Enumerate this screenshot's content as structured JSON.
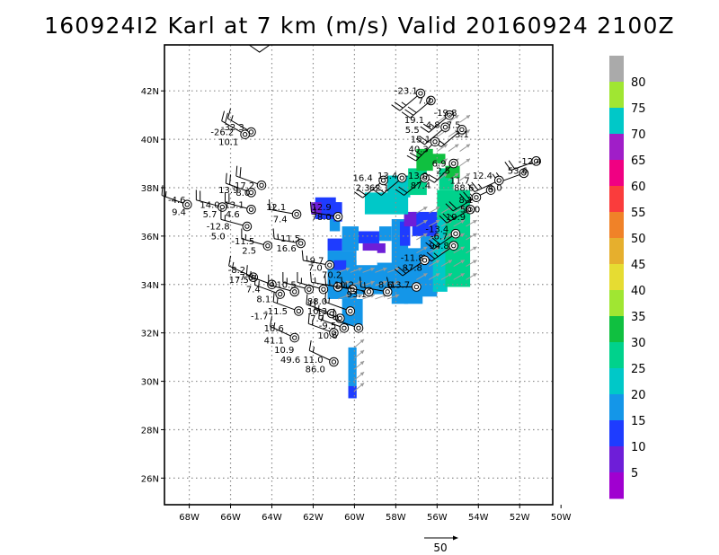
{
  "title": "160924I2 Karl at 7 km (m/s) Valid 20160924  2100Z",
  "chart_data": {
    "type": "heatmap",
    "title": "160924I2 Karl at 7 km (m/s) Valid 20160924  2100Z",
    "xlabel": "",
    "ylabel": "",
    "x_ticks": [
      "68W",
      "66W",
      "64W",
      "62W",
      "60W",
      "58W",
      "56W",
      "54W",
      "52W",
      "50W"
    ],
    "y_ticks": [
      "26N",
      "28N",
      "30N",
      "32N",
      "34N",
      "36N",
      "38N",
      "40N",
      "42N"
    ],
    "xlim": [
      -69.2,
      -50.4
    ],
    "ylim": [
      24.9,
      43.9
    ],
    "grid": true,
    "colorbar": {
      "labels": [
        "5",
        "10",
        "15",
        "20",
        "25",
        "30",
        "35",
        "40",
        "45",
        "50",
        "55",
        "60",
        "65",
        "70",
        "75",
        "80"
      ],
      "colors": [
        "#a000d0",
        "#6e1ed8",
        "#1e3cff",
        "#1496e8",
        "#00c8c8",
        "#00d28c",
        "#10c040",
        "#a0e632",
        "#e6dc32",
        "#e6af2d",
        "#f08228",
        "#fa3c3c",
        "#f00082",
        "#a01ec8",
        "#00c8c8",
        "#a0e632",
        "#aaaaaa"
      ]
    },
    "reference_vector": {
      "label": "50"
    },
    "point_labels": [
      {
        "text": "-23.1",
        "lon": -57.5,
        "lat": 42.0
      },
      {
        "text": "7.2",
        "lon": -56.6,
        "lat": 41.6
      },
      {
        "text": "-19.8",
        "lon": -55.6,
        "lat": 41.1
      },
      {
        "text": "19.1",
        "lon": -57.1,
        "lat": 40.8
      },
      {
        "text": "4.8",
        "lon": -56.2,
        "lat": 40.6
      },
      {
        "text": "7.5",
        "lon": -55.2,
        "lat": 40.6
      },
      {
        "text": "5.5",
        "lon": -57.2,
        "lat": 40.4
      },
      {
        "text": "15.1",
        "lon": -56.8,
        "lat": 40.0
      },
      {
        "text": "3.1",
        "lon": -54.8,
        "lat": 40.2
      },
      {
        "text": "40.3",
        "lon": -56.9,
        "lat": 39.6
      },
      {
        "text": "6.9",
        "lon": -55.9,
        "lat": 39.0
      },
      {
        "text": "-13.0",
        "lon": -57.0,
        "lat": 38.5
      },
      {
        "text": "2.5",
        "lon": -55.7,
        "lat": 38.7
      },
      {
        "text": "87.4",
        "lon": -56.8,
        "lat": 38.1
      },
      {
        "text": "16.4",
        "lon": -59.6,
        "lat": 38.4
      },
      {
        "text": "13.4",
        "lon": -58.4,
        "lat": 38.5
      },
      {
        "text": "2.3",
        "lon": -59.6,
        "lat": 38.0
      },
      {
        "text": "62.1",
        "lon": -58.8,
        "lat": 38.0
      },
      {
        "text": "-12.4",
        "lon": -51.5,
        "lat": 39.1
      },
      {
        "text": "53.6",
        "lon": -52.1,
        "lat": 38.7
      },
      {
        "text": "11.7",
        "lon": -54.9,
        "lat": 38.3
      },
      {
        "text": "12.4",
        "lon": -53.8,
        "lat": 38.5
      },
      {
        "text": "88.6",
        "lon": -54.7,
        "lat": 38.0
      },
      {
        "text": "4.0",
        "lon": -53.2,
        "lat": 38.0
      },
      {
        "text": "8.1",
        "lon": -54.6,
        "lat": 37.5
      },
      {
        "text": "50.0",
        "lon": -54.4,
        "lat": 37.1
      },
      {
        "text": "19.9",
        "lon": -55.1,
        "lat": 36.8
      },
      {
        "text": "-13.4",
        "lon": -56.0,
        "lat": 36.3
      },
      {
        "text": "-6.7",
        "lon": -55.9,
        "lat": 36.0
      },
      {
        "text": "94.8",
        "lon": -55.9,
        "lat": 35.6
      },
      {
        "text": "-11.8",
        "lon": -57.2,
        "lat": 35.1
      },
      {
        "text": "87.8",
        "lon": -57.2,
        "lat": 34.7
      },
      {
        "text": "-32.3",
        "lon": -65.9,
        "lat": 40.5
      },
      {
        "text": "-26.2",
        "lon": -66.4,
        "lat": 40.3
      },
      {
        "text": "10.1",
        "lon": -66.1,
        "lat": 39.9
      },
      {
        "text": "-17.2",
        "lon": -65.4,
        "lat": 38.1
      },
      {
        "text": "13.9",
        "lon": -66.1,
        "lat": 37.9
      },
      {
        "text": "8.0",
        "lon": -65.4,
        "lat": 37.8
      },
      {
        "text": "14.0",
        "lon": -67.0,
        "lat": 37.3
      },
      {
        "text": "-13.1",
        "lon": -65.9,
        "lat": 37.3
      },
      {
        "text": "5.7",
        "lon": -67.0,
        "lat": 36.9
      },
      {
        "text": "4.6",
        "lon": -65.9,
        "lat": 36.9
      },
      {
        "text": "-4.6",
        "lon": -68.6,
        "lat": 37.5
      },
      {
        "text": "9.4",
        "lon": -68.5,
        "lat": 37.0
      },
      {
        "text": "12.1",
        "lon": -63.8,
        "lat": 37.2
      },
      {
        "text": "7.4",
        "lon": -63.6,
        "lat": 36.7
      },
      {
        "text": "12.9",
        "lon": -61.6,
        "lat": 37.2
      },
      {
        "text": "78.0",
        "lon": -61.6,
        "lat": 36.8
      },
      {
        "text": "-12.8",
        "lon": -66.6,
        "lat": 36.4
      },
      {
        "text": "5.0",
        "lon": -66.6,
        "lat": 36.0
      },
      {
        "text": "-11.5",
        "lon": -65.4,
        "lat": 35.8
      },
      {
        "text": "2.5",
        "lon": -65.1,
        "lat": 35.4
      },
      {
        "text": "11.5",
        "lon": -63.1,
        "lat": 35.9
      },
      {
        "text": "16.6",
        "lon": -63.3,
        "lat": 35.5
      },
      {
        "text": "-9.7",
        "lon": -61.9,
        "lat": 35.0
      },
      {
        "text": "7.0",
        "lon": -61.9,
        "lat": 34.7
      },
      {
        "text": "-8.2",
        "lon": -65.7,
        "lat": 34.6
      },
      {
        "text": "17.5",
        "lon": -65.6,
        "lat": 34.2
      },
      {
        "text": "-7.0",
        "lon": -65.3,
        "lat": 34.3
      },
      {
        "text": "70.2",
        "lon": -61.1,
        "lat": 34.4
      },
      {
        "text": "7.4",
        "lon": -64.9,
        "lat": 33.8
      },
      {
        "text": "10.5",
        "lon": -63.3,
        "lat": 34.0
      },
      {
        "text": "8.1",
        "lon": -64.4,
        "lat": 33.4
      },
      {
        "text": "-11.5",
        "lon": -63.8,
        "lat": 32.9
      },
      {
        "text": "10.2",
        "lon": -60.5,
        "lat": 34.0
      },
      {
        "text": "8.6",
        "lon": -58.5,
        "lat": 34.0
      },
      {
        "text": "13.7",
        "lon": -57.8,
        "lat": 34.0
      },
      {
        "text": "93.1",
        "lon": -59.9,
        "lat": 33.6
      },
      {
        "text": "88.0",
        "lon": -61.8,
        "lat": 33.3
      },
      {
        "text": "10.3",
        "lon": -61.8,
        "lat": 32.9
      },
      {
        "text": "7.7",
        "lon": -61.8,
        "lat": 32.6
      },
      {
        "text": "-9.5",
        "lon": -61.3,
        "lat": 32.3
      },
      {
        "text": "-1.7",
        "lon": -64.6,
        "lat": 32.7
      },
      {
        "text": "10.6",
        "lon": -63.9,
        "lat": 32.2
      },
      {
        "text": "10.6",
        "lon": -61.3,
        "lat": 31.9
      },
      {
        "text": "41.1",
        "lon": -63.9,
        "lat": 31.7
      },
      {
        "text": "10.9",
        "lon": -63.4,
        "lat": 31.3
      },
      {
        "text": "49.6",
        "lon": -63.1,
        "lat": 30.9
      },
      {
        "text": "11.0",
        "lon": -62.0,
        "lat": 30.9
      },
      {
        "text": "86.0",
        "lon": -61.9,
        "lat": 30.5
      }
    ],
    "barbs": [
      {
        "lon": -56.8,
        "lat": 41.9,
        "speed": 25,
        "dir": 230
      },
      {
        "lon": -56.3,
        "lat": 41.6,
        "speed": 30,
        "dir": 230
      },
      {
        "lon": -55.4,
        "lat": 41.0,
        "speed": 25,
        "dir": 230
      },
      {
        "lon": -55.6,
        "lat": 40.5,
        "speed": 20,
        "dir": 230
      },
      {
        "lon": -54.8,
        "lat": 40.4,
        "speed": 20,
        "dir": 230
      },
      {
        "lon": -56.1,
        "lat": 39.9,
        "speed": 25,
        "dir": 225
      },
      {
        "lon": -55.2,
        "lat": 39.0,
        "speed": 20,
        "dir": 225
      },
      {
        "lon": -51.2,
        "lat": 39.1,
        "speed": 20,
        "dir": 250
      },
      {
        "lon": -51.8,
        "lat": 38.6,
        "speed": 20,
        "dir": 250
      },
      {
        "lon": -53.0,
        "lat": 38.3,
        "speed": 25,
        "dir": 245
      },
      {
        "lon": -53.4,
        "lat": 37.9,
        "speed": 25,
        "dir": 245
      },
      {
        "lon": -54.1,
        "lat": 37.6,
        "speed": 20,
        "dir": 240
      },
      {
        "lon": -54.4,
        "lat": 37.1,
        "speed": 25,
        "dir": 240
      },
      {
        "lon": -55.1,
        "lat": 36.1,
        "speed": 30,
        "dir": 235
      },
      {
        "lon": -55.2,
        "lat": 35.6,
        "speed": 25,
        "dir": 235
      },
      {
        "lon": -56.6,
        "lat": 35.0,
        "speed": 25,
        "dir": 235
      },
      {
        "lon": -57.7,
        "lat": 38.4,
        "speed": 20,
        "dir": 230
      },
      {
        "lon": -58.6,
        "lat": 38.3,
        "speed": 20,
        "dir": 230
      },
      {
        "lon": -56.6,
        "lat": 38.4,
        "speed": 20,
        "dir": 230
      },
      {
        "lon": -65.0,
        "lat": 40.3,
        "speed": 15,
        "dir": 300
      },
      {
        "lon": -65.3,
        "lat": 40.2,
        "speed": 20,
        "dir": 300
      },
      {
        "lon": -64.5,
        "lat": 38.1,
        "speed": 20,
        "dir": 290
      },
      {
        "lon": -65.0,
        "lat": 37.8,
        "speed": 20,
        "dir": 290
      },
      {
        "lon": -66.4,
        "lat": 37.2,
        "speed": 20,
        "dir": 285
      },
      {
        "lon": -65.0,
        "lat": 37.1,
        "speed": 20,
        "dir": 285
      },
      {
        "lon": -68.1,
        "lat": 37.3,
        "speed": 15,
        "dir": 290
      },
      {
        "lon": -62.8,
        "lat": 36.9,
        "speed": 15,
        "dir": 280
      },
      {
        "lon": -60.8,
        "lat": 36.8,
        "speed": 15,
        "dir": 280
      },
      {
        "lon": -65.2,
        "lat": 36.4,
        "speed": 15,
        "dir": 285
      },
      {
        "lon": -64.2,
        "lat": 35.6,
        "speed": 15,
        "dir": 285
      },
      {
        "lon": -62.6,
        "lat": 35.7,
        "speed": 15,
        "dir": 280
      },
      {
        "lon": -61.2,
        "lat": 34.8,
        "speed": 15,
        "dir": 280
      },
      {
        "lon": -64.9,
        "lat": 34.3,
        "speed": 15,
        "dir": 295
      },
      {
        "lon": -64.0,
        "lat": 34.0,
        "speed": 15,
        "dir": 290
      },
      {
        "lon": -63.6,
        "lat": 33.6,
        "speed": 15,
        "dir": 290
      },
      {
        "lon": -62.9,
        "lat": 33.7,
        "speed": 15,
        "dir": 285
      },
      {
        "lon": -62.2,
        "lat": 33.8,
        "speed": 15,
        "dir": 285
      },
      {
        "lon": -61.5,
        "lat": 33.8,
        "speed": 15,
        "dir": 285
      },
      {
        "lon": -60.8,
        "lat": 33.9,
        "speed": 15,
        "dir": 280
      },
      {
        "lon": -60.1,
        "lat": 33.8,
        "speed": 15,
        "dir": 280
      },
      {
        "lon": -59.3,
        "lat": 33.7,
        "speed": 15,
        "dir": 280
      },
      {
        "lon": -58.4,
        "lat": 33.7,
        "speed": 15,
        "dir": 280
      },
      {
        "lon": -57.0,
        "lat": 33.9,
        "speed": 15,
        "dir": 270
      },
      {
        "lon": -62.7,
        "lat": 32.9,
        "speed": 15,
        "dir": 290
      },
      {
        "lon": -61.1,
        "lat": 32.8,
        "speed": 15,
        "dir": 290
      },
      {
        "lon": -60.2,
        "lat": 32.9,
        "speed": 15,
        "dir": 290
      },
      {
        "lon": -60.7,
        "lat": 32.6,
        "speed": 15,
        "dir": 290
      },
      {
        "lon": -60.5,
        "lat": 32.2,
        "speed": 15,
        "dir": 290
      },
      {
        "lon": -59.8,
        "lat": 32.2,
        "speed": 15,
        "dir": 290
      },
      {
        "lon": -61.0,
        "lat": 32.0,
        "speed": 15,
        "dir": 290
      },
      {
        "lon": -62.9,
        "lat": 31.8,
        "speed": 15,
        "dir": 295
      },
      {
        "lon": -61.0,
        "lat": 30.8,
        "speed": 15,
        "dir": 295
      }
    ]
  }
}
